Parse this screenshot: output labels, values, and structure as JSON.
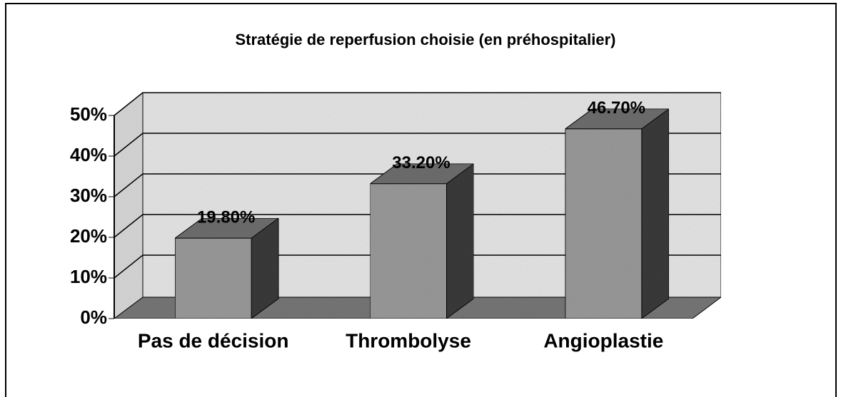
{
  "chart_data": {
    "type": "bar3d",
    "title": "Stratégie de reperfusion choisie (en préhospitalier)",
    "categories": [
      "Pas de décision",
      "Thrombolyse",
      "Angioplastie"
    ],
    "values": [
      19.8,
      33.2,
      46.7
    ],
    "value_labels": [
      "19.80%",
      "33.20%",
      "46.70%"
    ],
    "color": "#9a9a9a",
    "ylim": [
      0,
      50
    ],
    "yticks": [
      {
        "value": 0,
        "label": "0%"
      },
      {
        "value": 10,
        "label": "10%"
      },
      {
        "value": 20,
        "label": "20%"
      },
      {
        "value": 30,
        "label": "30%"
      },
      {
        "value": 40,
        "label": "40%"
      },
      {
        "value": 50,
        "label": "50%"
      }
    ],
    "grid": true
  }
}
